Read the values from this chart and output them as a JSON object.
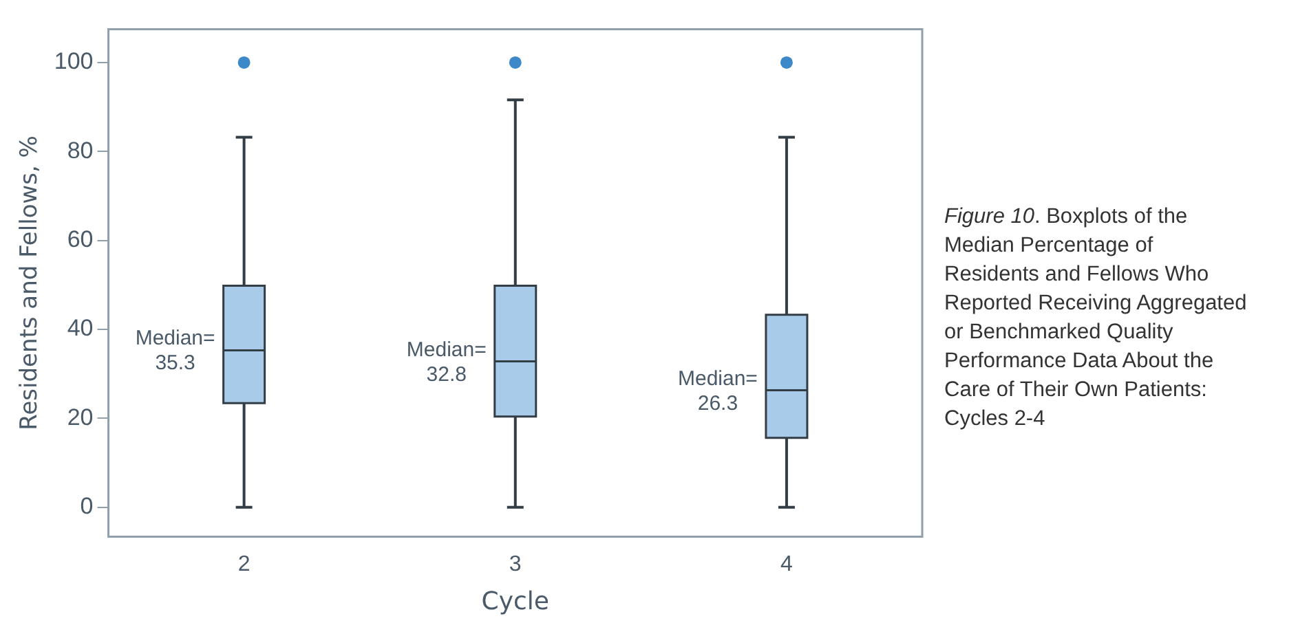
{
  "chart_data": {
    "type": "box",
    "xlabel": "Cycle",
    "ylabel": "Residents and Fellows, %",
    "categories": [
      "2",
      "3",
      "4"
    ],
    "color": "#a9cbea",
    "boxes": [
      {
        "low": 0,
        "q1": 23.4,
        "median": 35.3,
        "q3": 49.8,
        "high": 83.2,
        "outliers": [
          100
        ]
      },
      {
        "low": 0,
        "q1": 20.4,
        "median": 32.8,
        "q3": 49.8,
        "high": 91.6,
        "outliers": [
          100
        ]
      },
      {
        "low": 0,
        "q1": 15.6,
        "median": 26.3,
        "q3": 43.3,
        "high": 83.2,
        "outliers": [
          100
        ]
      }
    ],
    "ylim": [
      -6.6,
      107.5
    ],
    "yticks": [
      0,
      20,
      40,
      60,
      80,
      100
    ],
    "grid": false,
    "legend": false,
    "annotations": [
      {
        "text": "Median=\n35.3",
        "x": "2",
        "y": 35.3
      },
      {
        "text": "Median=\n32.8",
        "x": "3",
        "y": 32.8
      },
      {
        "text": "Median=\n26.3",
        "x": "4",
        "y": 26.3
      },
      "Figure 10. Boxplots of the Median Percentage of Residents and Fellows Who Reported Receiving Aggregated or Benchmarked Quality Performance Data About the Care of Their Own Patients: Cycles 2-4"
    ]
  }
}
